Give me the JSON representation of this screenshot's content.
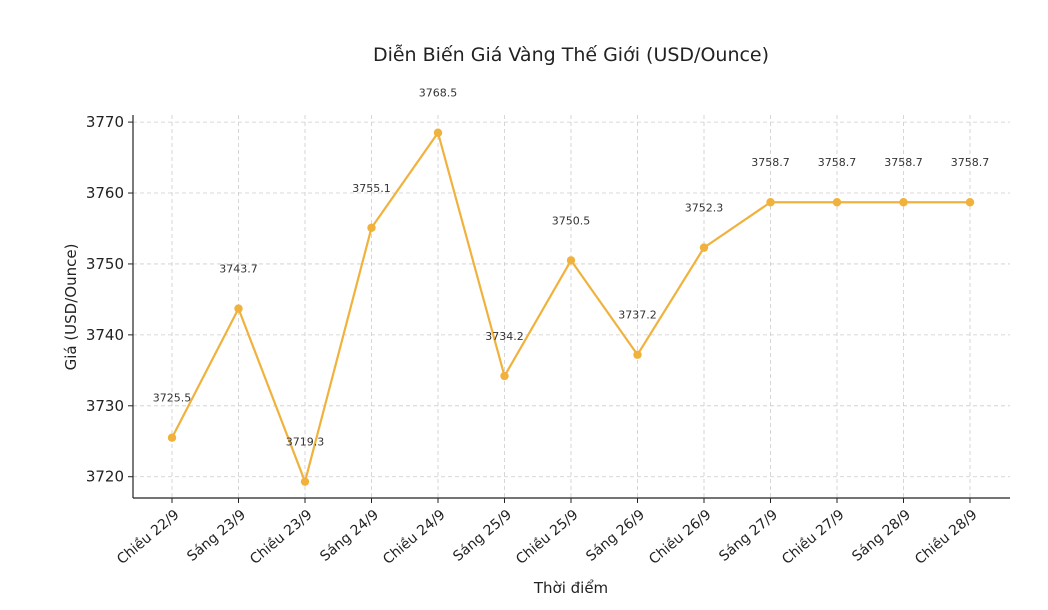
{
  "chart_data": {
    "type": "line",
    "title": "Diễn Biến Giá Vàng Thế Giới (USD/Ounce)",
    "xlabel": "Thời điểm",
    "ylabel": "Giá (USD/Ounce)",
    "ylim": [
      3717,
      3771
    ],
    "yticks": [
      3720,
      3730,
      3740,
      3750,
      3760,
      3770
    ],
    "grid": true,
    "line_color": "#f0b23c",
    "categories": [
      "Chiều 22/9",
      "Sáng 23/9",
      "Chiều 23/9",
      "Sáng 24/9",
      "Chiều 24/9",
      "Sáng 25/9",
      "Chiều 25/9",
      "Sáng 26/9",
      "Chiều 26/9",
      "Sáng 27/9",
      "Chiều 27/9",
      "Sáng 28/9",
      "Chiều 28/9"
    ],
    "values": [
      3725.5,
      3743.7,
      3719.3,
      3755.1,
      3768.5,
      3734.2,
      3750.5,
      3737.2,
      3752.3,
      3758.7,
      3758.7,
      3758.7,
      3758.7
    ],
    "data_labels": [
      "3725.5",
      "3743.7",
      "3719.3",
      "3755.1",
      "3768.5",
      "3734.2",
      "3750.5",
      "3737.2",
      "3752.3",
      "3758.7",
      "3758.7",
      "3758.7",
      "3758.7"
    ]
  }
}
